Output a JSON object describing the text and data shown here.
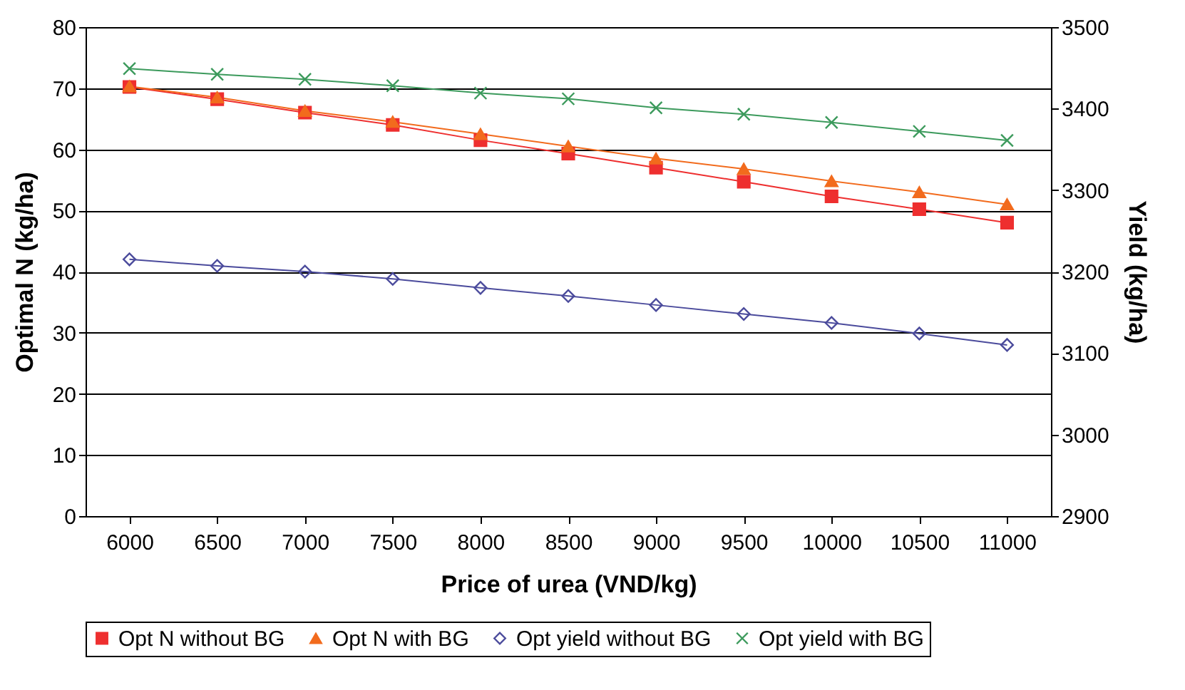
{
  "chart_data": {
    "type": "line",
    "xlabel": "Price of urea (VND/kg)",
    "ylabel": "Optimal N (kg/ha)",
    "y2label": "Yield (kg/ha)",
    "categories": [
      "6000",
      "6500",
      "7000",
      "7500",
      "8000",
      "8500",
      "9000",
      "9500",
      "10000",
      "10500",
      "11000"
    ],
    "ylim": [
      0,
      80
    ],
    "yticks": [
      0,
      10,
      20,
      30,
      40,
      50,
      60,
      70,
      80
    ],
    "y2lim": [
      2900,
      3500
    ],
    "y2ticks": [
      2900,
      3000,
      3100,
      3200,
      3300,
      3400,
      3500
    ],
    "grid": "y",
    "legend": "bottom",
    "series": [
      {
        "name": "Opt N without BG",
        "color": "#ee2f2f",
        "marker": "square",
        "values": [
          70.2,
          68.2,
          66,
          64,
          61.5,
          59.3,
          57,
          54.7,
          52.3,
          50.2,
          48
        ]
      },
      {
        "name": "Opt N with BG",
        "color": "#f26b1d",
        "marker": "triangle",
        "values": [
          70.3,
          68.5,
          66.3,
          64.5,
          62.5,
          60.5,
          58.5,
          56.8,
          54.8,
          53,
          51
        ]
      },
      {
        "name": "Opt yield without BG",
        "color": "#4b4b9c",
        "marker": "diamond",
        "axis": "y2",
        "values": [
          3215,
          3207,
          3200,
          3191,
          3180,
          3170,
          3159,
          3148,
          3137,
          3124,
          3110
        ]
      },
      {
        "name": "Opt yield with BG",
        "color": "#3c9a5c",
        "marker": "cross",
        "axis": "y2",
        "values": [
          3449,
          3442,
          3436,
          3428,
          3419,
          3412,
          3401,
          3393,
          3383,
          3372,
          3361
        ]
      }
    ]
  }
}
